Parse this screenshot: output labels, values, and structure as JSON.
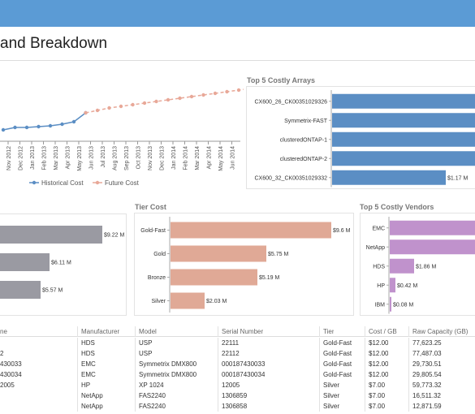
{
  "header": {
    "title": "and Breakdown"
  },
  "trend_chart": {
    "x_labels": [
      "Nov 2012",
      "Dec 2012",
      "Jan 2013",
      "Feb 2013",
      "Mar 2013",
      "Apr 2013",
      "May 2013",
      "Jun 2013",
      "Jul 2013",
      "Aug 2013",
      "Sep 2013",
      "Oct 2013",
      "Nov 2013",
      "Dec 2013",
      "Jan 2014",
      "Feb 2014",
      "Mar 2014",
      "Apr 2014",
      "May 2014",
      "Jun 2014"
    ],
    "legend": [
      "Historical Cost",
      "Future Cost"
    ],
    "colors": {
      "historical": "#5b8ec4",
      "future": "#e8a898"
    }
  },
  "top_arrays": {
    "title": "Top 5 Costly Arrays",
    "labels": [
      "CX600_26_CK00351029326",
      "Symmetrix-FAST",
      "clusteredONTAP-1",
      "clusteredONTAP-2",
      "CX600_32_CK00351029332"
    ],
    "value_labels": [
      "",
      "",
      "",
      "",
      "$1.17 M"
    ],
    "color": "#5b8ec4"
  },
  "left_bars": {
    "value_labels": [
      "$9.22 M",
      "$6.11 M",
      "$5.57 M"
    ],
    "color": "#9a9aa2"
  },
  "tier_cost": {
    "title": "Tier Cost",
    "labels": [
      "Gold-Fast",
      "Gold",
      "Bronze",
      "Silver"
    ],
    "value_labels": [
      "$9.6 M",
      "$5.75 M",
      "$5.19 M",
      "$2.03 M"
    ],
    "color": "#e0a996"
  },
  "top_vendors": {
    "title": "Top 5 Costly Vendors",
    "labels": [
      "EMC",
      "NetApp",
      "HDS",
      "HP",
      "IBM"
    ],
    "value_labels": [
      "",
      "",
      "$1.86 M",
      "$0.42 M",
      "$0.08 M"
    ],
    "color": "#c092cc"
  },
  "table": {
    "headers": [
      "ne",
      "Manufacturer",
      "Model",
      "Serial Number",
      "Tier",
      "Cost / GB",
      "Raw Capacity (GB)"
    ],
    "rows": [
      [
        "",
        "HDS",
        "USP",
        "22111",
        "Gold-Fast",
        "$12.00",
        "77,623.25"
      ],
      [
        "2",
        "HDS",
        "USP",
        "22112",
        "Gold-Fast",
        "$12.00",
        "77,487.03"
      ],
      [
        "430033",
        "EMC",
        "Symmetrix DMX800",
        "000187430033",
        "Gold-Fast",
        "$12.00",
        "29,730.51"
      ],
      [
        "430034",
        "EMC",
        "Symmetrix DMX800",
        "000187430034",
        "Gold-Fast",
        "$12.00",
        "29,805.54"
      ],
      [
        "2005",
        "HP",
        "XP 1024",
        "12005",
        "Silver",
        "$7.00",
        "59,773.32"
      ],
      [
        "",
        "NetApp",
        "FAS2240",
        "1306859",
        "Silver",
        "$7.00",
        "16,511.32"
      ],
      [
        "",
        "NetApp",
        "FAS2240",
        "1306858",
        "Silver",
        "$7.00",
        "12,871.59"
      ]
    ]
  }
}
